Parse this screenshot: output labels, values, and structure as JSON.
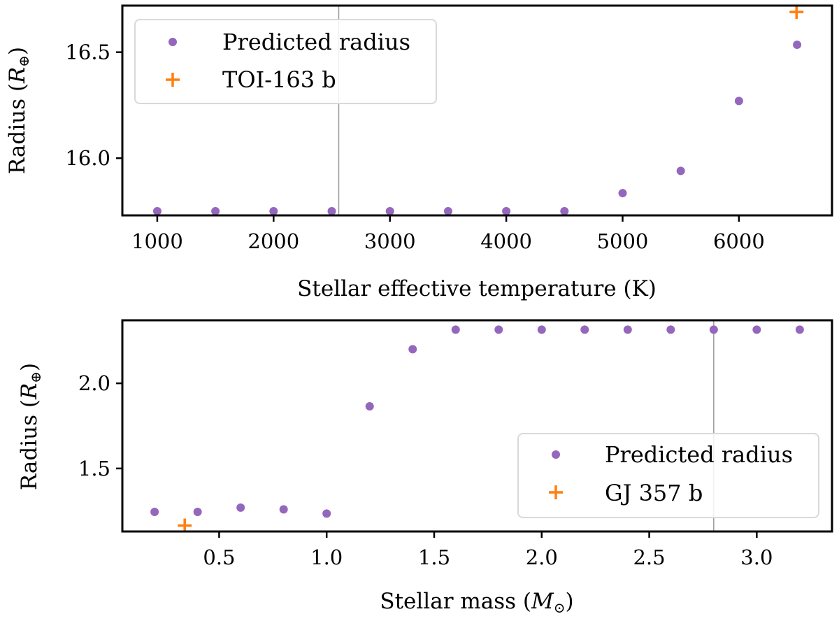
{
  "colors": {
    "predicted": "#9467bd",
    "planet": "#ff7f0e",
    "vline": "#999999",
    "legend_border": "#d9d9d9"
  },
  "chart_data": [
    {
      "type": "scatter",
      "xlabel": "Stellar effective temperature (K)",
      "ylabel_main": "Radius (",
      "ylabel_math": "R",
      "ylabel_sub": "⊕",
      "ylabel_close": ")",
      "xlim": [
        700,
        6800
      ],
      "ylim": [
        15.73,
        16.72
      ],
      "xticks": [
        1000,
        2000,
        3000,
        4000,
        5000,
        6000
      ],
      "xtick_labels": [
        "1000",
        "2000",
        "3000",
        "4000",
        "5000",
        "6000"
      ],
      "yticks": [
        16.0,
        16.5
      ],
      "ytick_labels": [
        "16.0",
        "16.5"
      ],
      "vline_x": 2560,
      "legend_position": "upper left",
      "series": [
        {
          "name": "Predicted radius",
          "marker": "circle",
          "x": [
            1000,
            1500,
            2000,
            2500,
            3000,
            3500,
            4000,
            4500,
            5000,
            5500,
            6000,
            6500
          ],
          "y": [
            15.75,
            15.75,
            15.75,
            15.75,
            15.75,
            15.75,
            15.75,
            15.75,
            15.835,
            15.94,
            16.27,
            16.535
          ]
        },
        {
          "name": "TOI-163 b",
          "marker": "plus",
          "x": [
            6495
          ],
          "y": [
            16.69
          ]
        }
      ]
    },
    {
      "type": "scatter",
      "xlabel_main": "Stellar mass (",
      "xlabel_math": "M",
      "xlabel_sub": "⊙",
      "xlabel_close": ")",
      "ylabel_main": "Radius (",
      "ylabel_math": "R",
      "ylabel_sub": "⊕",
      "ylabel_close": ")",
      "xlim": [
        0.05,
        3.35
      ],
      "ylim": [
        1.13,
        2.37
      ],
      "xticks": [
        0.5,
        1.0,
        1.5,
        2.0,
        2.5,
        3.0
      ],
      "xtick_labels": [
        "0.5",
        "1.0",
        "1.5",
        "2.0",
        "2.5",
        "3.0"
      ],
      "yticks": [
        1.5,
        2.0
      ],
      "ytick_labels": [
        "1.5",
        "2.0"
      ],
      "vline_x": 2.8,
      "legend_position": "lower right",
      "series": [
        {
          "name": "Predicted radius",
          "marker": "circle",
          "x": [
            0.2,
            0.4,
            0.6,
            0.8,
            1.0,
            1.2,
            1.4,
            1.6,
            1.8,
            2.0,
            2.2,
            2.4,
            2.6,
            2.8,
            3.0,
            3.2
          ],
          "y": [
            1.245,
            1.245,
            1.27,
            1.26,
            1.235,
            1.865,
            2.2,
            2.315,
            2.315,
            2.315,
            2.315,
            2.315,
            2.315,
            2.315,
            2.315,
            2.315
          ]
        },
        {
          "name": "GJ 357 b",
          "marker": "plus",
          "x": [
            0.34
          ],
          "y": [
            1.165
          ]
        }
      ]
    }
  ]
}
